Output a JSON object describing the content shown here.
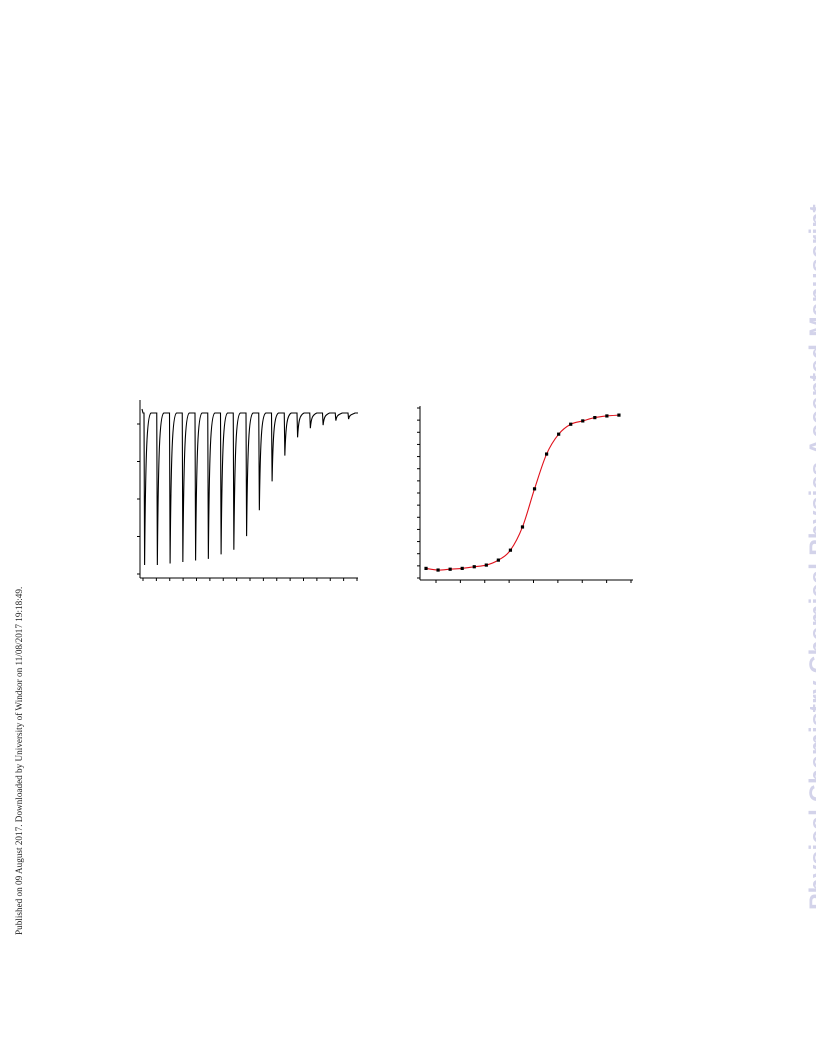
{
  "sidebar_note": "Published on 09 August 2017. Downloaded by University of Windsor on 11/08/2017 19:18:49.",
  "watermark": {
    "text": "Physical Chemistry Chemical Physics Accepted Manuscript",
    "color": "#d3d3ea"
  },
  "chart_data": [
    {
      "type": "line",
      "description_role": "raw thermogram",
      "injections": 17,
      "spike_depths": [
        1.0,
        1.0,
        0.99,
        0.98,
        0.97,
        0.96,
        0.93,
        0.9,
        0.81,
        0.64,
        0.45,
        0.28,
        0.16,
        0.1,
        0.08,
        0.05,
        0.04
      ],
      "line_color": "#000000",
      "x_ticks": 17,
      "y_ticks": 5,
      "tick_labels_visible": false
    },
    {
      "type": "scatter",
      "description_role": "integrated heats with sigmoidal fit",
      "points": [
        [
          0.0,
          0.02
        ],
        [
          0.6,
          0.01
        ],
        [
          1.2,
          0.015
        ],
        [
          1.8,
          0.02
        ],
        [
          2.4,
          0.03
        ],
        [
          3.0,
          0.04
        ],
        [
          3.6,
          0.07
        ],
        [
          4.2,
          0.13
        ],
        [
          4.8,
          0.27
        ],
        [
          5.4,
          0.5
        ],
        [
          6.0,
          0.71
        ],
        [
          6.6,
          0.83
        ],
        [
          7.2,
          0.89
        ],
        [
          7.8,
          0.91
        ],
        [
          8.4,
          0.93
        ],
        [
          9.0,
          0.94
        ],
        [
          9.6,
          0.945
        ]
      ],
      "fit_line_color": "#e0101a",
      "point_color": "#000000",
      "xlim": [
        -0.3,
        10.3
      ],
      "ylim": [
        -0.05,
        1.0
      ],
      "x_ticks": 9,
      "y_ticks": 15,
      "tick_labels_visible": false
    }
  ]
}
